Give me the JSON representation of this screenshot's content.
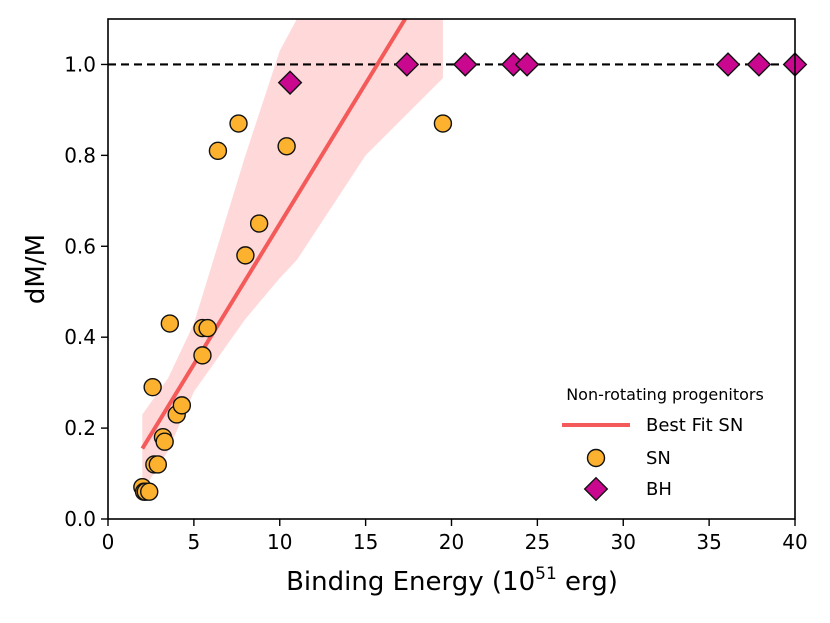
{
  "chart_data": {
    "type": "scatter",
    "title": "",
    "xlabel": "Binding Energy (10",
    "xlabel_sup": "51",
    "xlabel_suffix": " erg)",
    "ylabel": "dM/M",
    "xlim": [
      0,
      40
    ],
    "ylim": [
      0,
      1.1
    ],
    "xticks": [
      0,
      5,
      10,
      15,
      20,
      25,
      30,
      35,
      40
    ],
    "yticks": [
      0.0,
      0.2,
      0.4,
      0.6,
      0.8,
      1.0
    ],
    "ytick_labels": [
      "0.0",
      "0.2",
      "0.4",
      "0.6",
      "0.8",
      "1.0"
    ],
    "grid": false,
    "reference_line": {
      "y": 1.0,
      "style": "dashed",
      "color": "#000000"
    },
    "legend": {
      "title": "Non-rotating progenitors",
      "position": "lower-right",
      "entries": [
        "Best Fit SN",
        "SN",
        "BH"
      ]
    },
    "series": [
      {
        "name": "Best Fit SN",
        "kind": "line",
        "color": "#f55a5a",
        "x": [
          2.0,
          17.3
        ],
        "y": [
          0.155,
          1.1
        ]
      },
      {
        "name": "Best Fit SN uncertainty",
        "kind": "band",
        "color": "#ffd9d9",
        "x": [
          2.0,
          3.5,
          5.0,
          8.0,
          10.0,
          11.0,
          15.0,
          19.5
        ],
        "upper": [
          0.23,
          0.31,
          0.43,
          0.8,
          1.03,
          1.1,
          1.1,
          1.1
        ],
        "lower": [
          0.06,
          0.15,
          0.28,
          0.44,
          0.53,
          0.57,
          0.8,
          0.97
        ]
      },
      {
        "name": "SN",
        "kind": "scatter",
        "marker": "circle",
        "color": "#fdb22f",
        "x": [
          2.0,
          2.1,
          2.2,
          2.4,
          2.6,
          2.7,
          2.9,
          3.2,
          3.3,
          3.6,
          4.0,
          4.3,
          5.5,
          5.5,
          5.8,
          6.4,
          7.6,
          8.0,
          8.8,
          10.4,
          19.5
        ],
        "y": [
          0.07,
          0.06,
          0.06,
          0.06,
          0.29,
          0.12,
          0.12,
          0.18,
          0.17,
          0.43,
          0.23,
          0.25,
          0.42,
          0.36,
          0.42,
          0.81,
          0.87,
          0.58,
          0.65,
          0.82,
          0.87
        ]
      },
      {
        "name": "BH",
        "kind": "scatter",
        "marker": "diamond",
        "color": "#c9078f",
        "x": [
          10.6,
          17.4,
          20.8,
          23.6,
          24.4,
          36.1,
          37.9,
          40.0
        ],
        "y": [
          0.96,
          1.0,
          1.0,
          1.0,
          1.0,
          1.0,
          1.0,
          1.0
        ]
      }
    ]
  }
}
